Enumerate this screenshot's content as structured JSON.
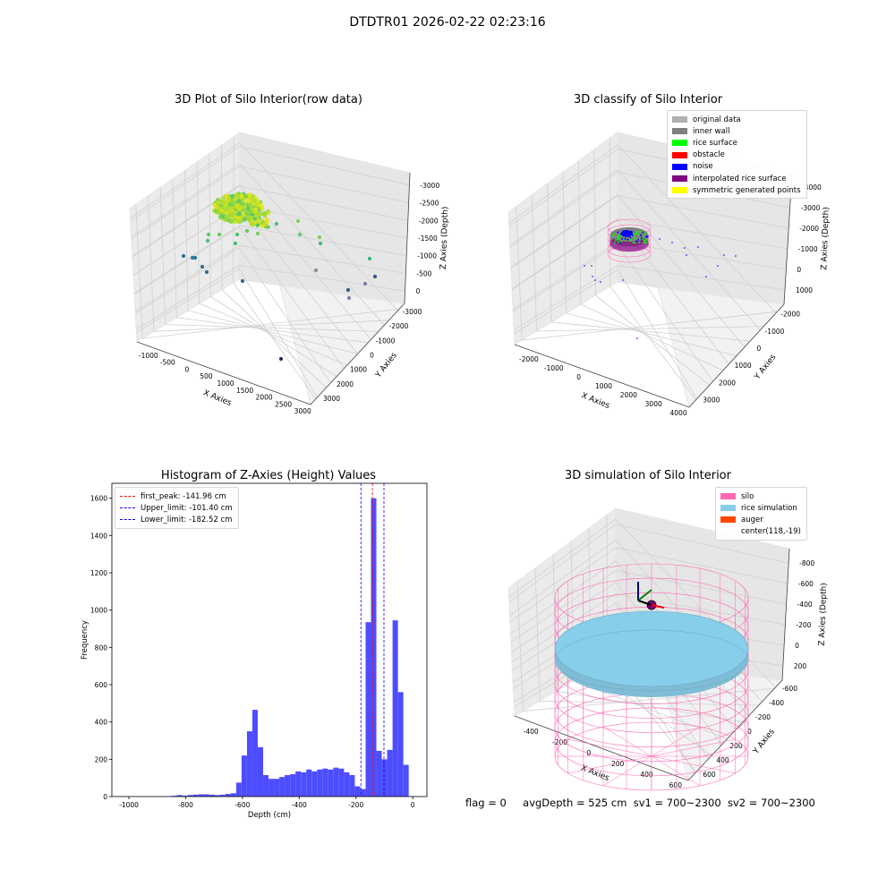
{
  "figure": {
    "title": "DTDTR01 2026-02-22 02:23:16",
    "footer": {
      "flag": "flag = 0",
      "avg_depth": "avgDepth = 525 cm",
      "sv1": "sv1 = 700~2300",
      "sv2": "sv2 = 700~2300"
    }
  },
  "chart_data": [
    {
      "type": "scatter",
      "subtype": "3d",
      "title": "3D Plot of Silo Interior(row data)",
      "xlabel": "X Axies",
      "ylabel": "Y Axies",
      "zlabel": "Z Axies (Depth)",
      "x_ticks": [
        "-1000",
        "-500",
        "0",
        "500",
        "1000",
        "1500",
        "2000",
        "2500",
        "3000"
      ],
      "y_ticks": [
        "-3000",
        "-2000",
        "-1000",
        "0",
        "1000",
        "2000",
        "3000"
      ],
      "z_ticks": [
        "0",
        "-500",
        "-1000",
        "-1500",
        "-2000",
        "-2500",
        "-3000"
      ],
      "xlim": [
        -1200,
        3000
      ],
      "ylim": [
        -3000,
        3500
      ],
      "zlim": [
        -3200,
        200
      ],
      "colormap": "viridis",
      "grid": true
    },
    {
      "type": "scatter",
      "subtype": "3d",
      "title": "3D classify of Silo Interior",
      "xlabel": "X Axies",
      "ylabel": "Y Axies",
      "zlabel": "Z Axies (Depth)",
      "x_ticks": [
        "-2000",
        "-1000",
        "0",
        "1000",
        "2000",
        "3000",
        "4000"
      ],
      "y_ticks": [
        "-2000",
        "-1000",
        "0",
        "1000",
        "2000",
        "3000"
      ],
      "z_ticks": [
        "1000",
        "0",
        "-1000",
        "-2000",
        "-3000",
        "-4000"
      ],
      "legend": [
        {
          "label": "original data",
          "color": "#b0b0b0"
        },
        {
          "label": "inner wall",
          "color": "#808080"
        },
        {
          "label": "rice surface",
          "color": "#00ff00"
        },
        {
          "label": "obstacle",
          "color": "#ff0000"
        },
        {
          "label": "noise",
          "color": "#0000ff"
        },
        {
          "label": "interpolated rice surface",
          "color": "#800080"
        },
        {
          "label": "symmetric generated points",
          "color": "#ffff00"
        }
      ],
      "legend_position": "top-right",
      "grid": true
    },
    {
      "type": "bar",
      "subtype": "histogram",
      "title": "Histogram of Z-Axies (Height) Values",
      "xlabel": "Depth (cm)",
      "ylabel": "Frequency",
      "xlim": [
        -1060,
        50
      ],
      "ylim": [
        0,
        1680
      ],
      "x_ticks": [
        -1000,
        -800,
        -600,
        -400,
        -200,
        0
      ],
      "y_ticks": [
        0,
        200,
        400,
        600,
        800,
        1000,
        1200,
        1400,
        1600
      ],
      "bar_color": "#4d4dff",
      "bin_width": 18.9,
      "bins": [
        [
          -850,
          4
        ],
        [
          -831,
          8
        ],
        [
          -812,
          5
        ],
        [
          -793,
          8
        ],
        [
          -774,
          10
        ],
        [
          -755,
          12
        ],
        [
          -736,
          12
        ],
        [
          -717,
          10
        ],
        [
          -698,
          8
        ],
        [
          -679,
          10
        ],
        [
          -660,
          14
        ],
        [
          -641,
          18
        ],
        [
          -622,
          75
        ],
        [
          -603,
          220
        ],
        [
          -584,
          350
        ],
        [
          -565,
          465
        ],
        [
          -546,
          265
        ],
        [
          -527,
          115
        ],
        [
          -508,
          95
        ],
        [
          -489,
          95
        ],
        [
          -470,
          105
        ],
        [
          -451,
          115
        ],
        [
          -432,
          120
        ],
        [
          -413,
          135
        ],
        [
          -394,
          130
        ],
        [
          -375,
          145
        ],
        [
          -356,
          135
        ],
        [
          -337,
          145
        ],
        [
          -318,
          150
        ],
        [
          -299,
          145
        ],
        [
          -280,
          155
        ],
        [
          -261,
          150
        ],
        [
          -242,
          130
        ],
        [
          -223,
          115
        ],
        [
          -204,
          55
        ],
        [
          -185,
          40
        ],
        [
          -166,
          935
        ],
        [
          -147,
          1600
        ],
        [
          -128,
          245
        ],
        [
          -109,
          200
        ],
        [
          -90,
          250
        ],
        [
          -71,
          945
        ],
        [
          -52,
          560
        ],
        [
          -33,
          170
        ]
      ],
      "vlines": [
        {
          "label": "first_peak: -141.96 cm",
          "x": -141.96,
          "color": "#ff0000"
        },
        {
          "label": "Upper_limit: -101.40 cm",
          "x": -101.4,
          "color": "#0000ff"
        },
        {
          "label": "Lower_limit: -182.52 cm",
          "x": -182.52,
          "color": "#0000ff"
        }
      ],
      "legend_position": "top-left",
      "grid": false
    },
    {
      "type": "scatter",
      "subtype": "3d",
      "title": "3D simulation of Silo Interior",
      "xlabel": "X Axies",
      "ylabel": "Y Axies",
      "zlabel": "Z Axies (Depth)",
      "x_ticks": [
        "-400",
        "-200",
        "0",
        "200",
        "400",
        "600"
      ],
      "y_ticks": [
        "-600",
        "-400",
        "-200",
        "0",
        "200",
        "400",
        "600"
      ],
      "z_ticks": [
        "200",
        "0",
        "-200",
        "-400",
        "-600",
        "-800"
      ],
      "legend": [
        {
          "label": "silo",
          "color": "#ff69b4"
        },
        {
          "label": "rice simulation",
          "color": "#87ceeb"
        },
        {
          "label": "auger",
          "color": "#ff4500"
        },
        {
          "label": "center(118,-19)",
          "color": ""
        }
      ],
      "legend_position": "top-right",
      "grid": true
    }
  ]
}
